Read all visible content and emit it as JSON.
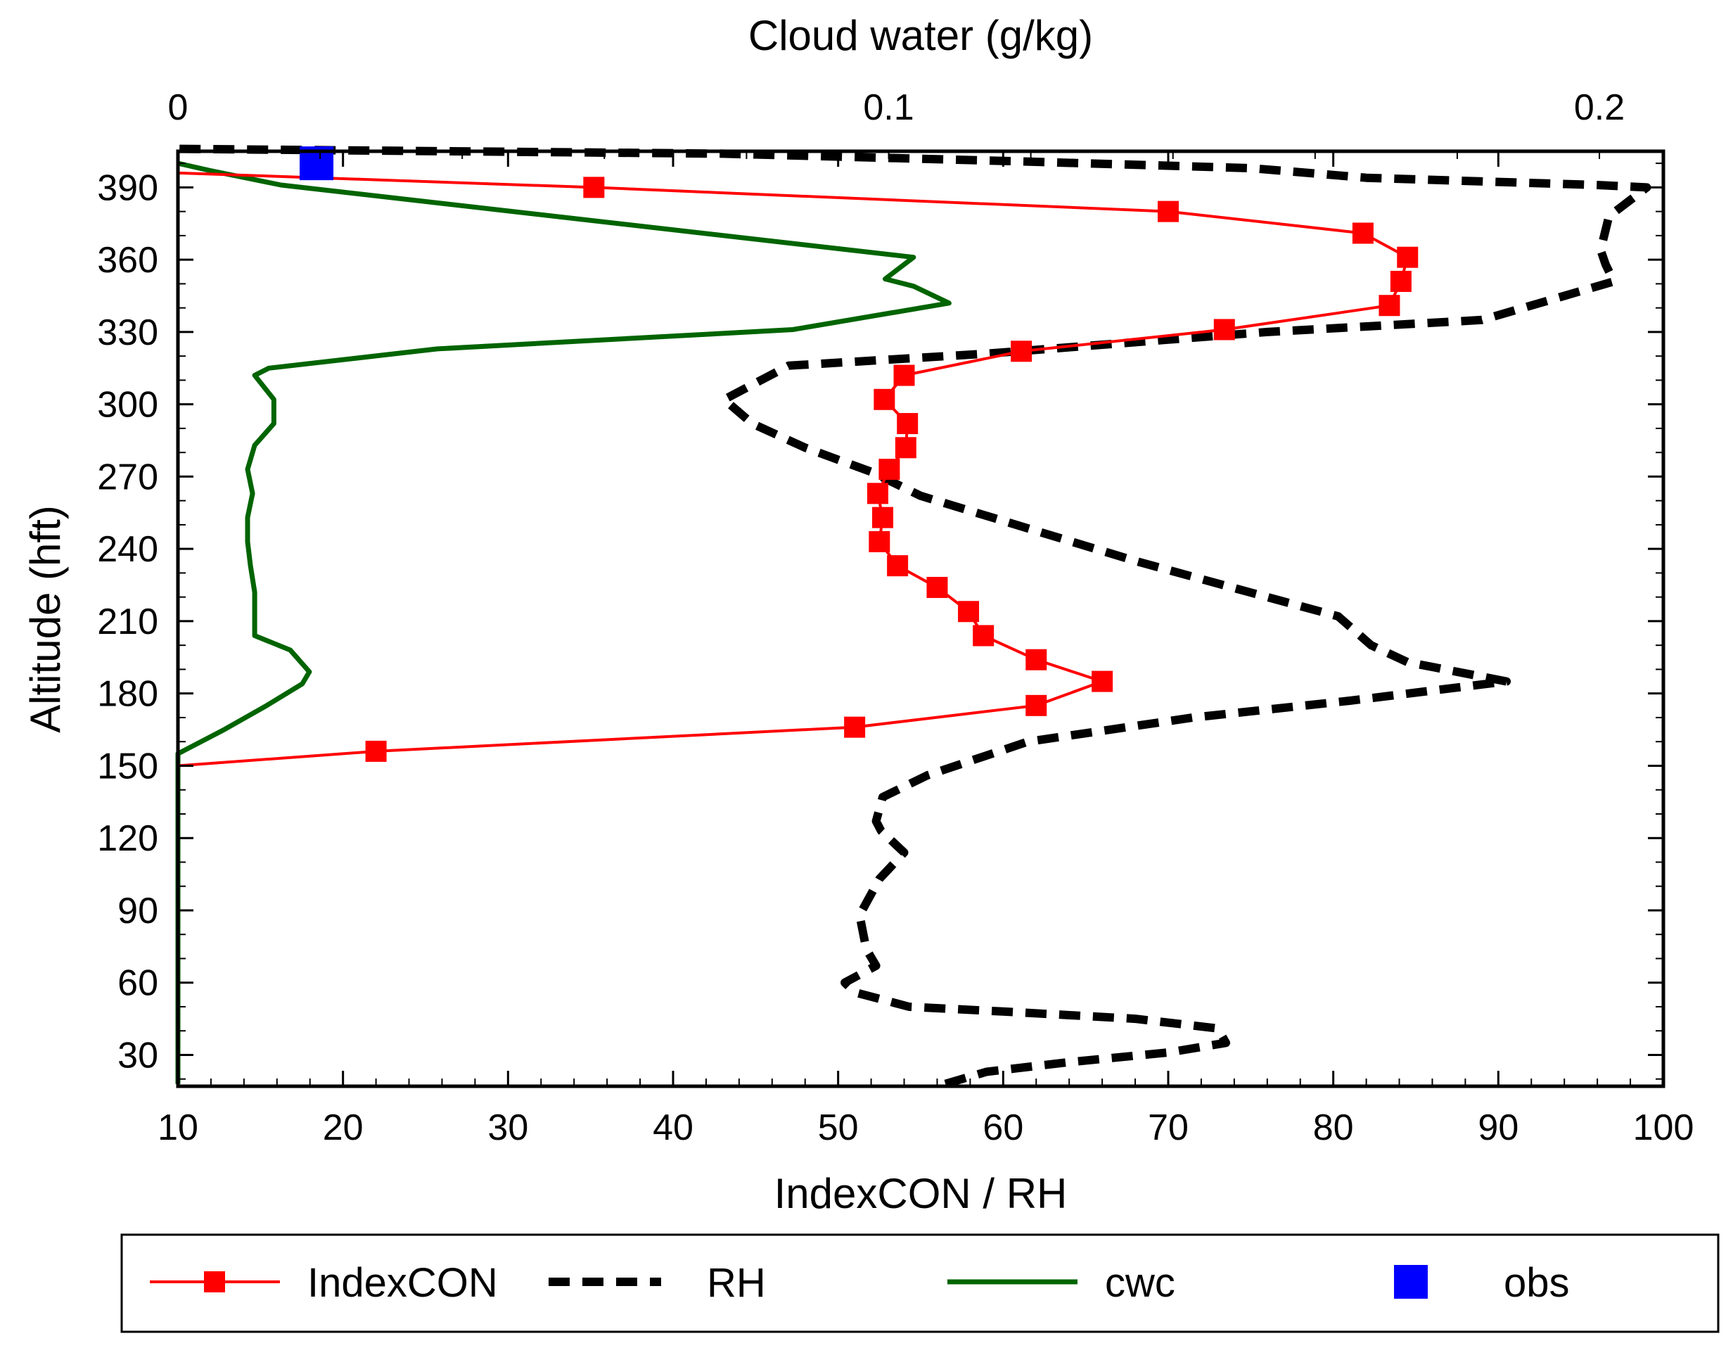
{
  "chart_data": {
    "type": "line",
    "title": "",
    "xlabel": "IndexCON / RH",
    "x2label": "Cloud water (g/kg)",
    "ylabel": "Altitude (hft)",
    "xlim": [
      10,
      100
    ],
    "x2lim": [
      0,
      0.209
    ],
    "ylim": [
      17,
      405
    ],
    "xticks": [
      "10",
      "20",
      "30",
      "40",
      "50",
      "60",
      "70",
      "80",
      "90",
      "100"
    ],
    "x2ticks": [
      "0",
      "0.1",
      "0.2"
    ],
    "yticks": [
      "30",
      "60",
      "90",
      "120",
      "150",
      "180",
      "210",
      "240",
      "270",
      "300",
      "330",
      "360",
      "390"
    ],
    "legend_position": "bottom",
    "series": [
      {
        "name": "IndexCON",
        "axis": "bottom",
        "style": "solid-markers",
        "color": "#ff0000",
        "x": [
          10,
          22,
          51,
          62,
          66,
          62,
          58.8,
          57.9,
          56,
          53.6,
          52.5,
          52.7,
          52.4,
          53.1,
          54.1,
          54.2,
          52.8,
          54.0,
          61.1,
          73.4,
          83.4,
          84.1,
          84.5,
          81.8,
          70.0,
          35.2,
          10
        ],
        "y": [
          150,
          156,
          166,
          175,
          185,
          194,
          204,
          214,
          224,
          233,
          243,
          253,
          263,
          273,
          282,
          292,
          302,
          312,
          322,
          331,
          341,
          351,
          361,
          371,
          380,
          390,
          396
        ],
        "markers": [
          false,
          true,
          true,
          true,
          true,
          true,
          true,
          true,
          true,
          true,
          true,
          true,
          true,
          true,
          true,
          true,
          true,
          true,
          true,
          true,
          true,
          true,
          true,
          true,
          true,
          true,
          false
        ]
      },
      {
        "name": "RH",
        "axis": "bottom",
        "style": "dashed",
        "color": "#000000",
        "x": [
          56.5,
          59,
          64,
          70,
          73.5,
          73,
          68,
          60,
          54.3,
          51,
          50.4,
          52.3,
          51.7,
          51.3,
          52.5,
          54,
          52.6,
          52.3,
          52.7,
          55.4,
          61.5,
          71.5,
          81,
          90.5,
          84.5,
          82.3,
          80.3,
          76,
          68,
          55,
          52,
          48,
          44.8,
          43.1,
          47,
          59,
          76,
          89,
          93,
          97,
          96.5,
          96.2,
          96.7,
          99,
          96,
          82,
          75,
          60,
          43,
          10
        ],
        "y": [
          18,
          23,
          27,
          31,
          35,
          41,
          45,
          48,
          50,
          56,
          60,
          67,
          74,
          88,
          103,
          114,
          123,
          127,
          137,
          146,
          160,
          170,
          177,
          185,
          193,
          200,
          212,
          220,
          235,
          262,
          272,
          282,
          292,
          302,
          316,
          321,
          330,
          335,
          343,
          351,
          358,
          364,
          378,
          390,
          391,
          394,
          398,
          401,
          404,
          406
        ]
      },
      {
        "name": "cwc",
        "axis": "top",
        "style": "solid",
        "color": "#006400",
        "x2": [
          0,
          0,
          0,
          0,
          0.0065,
          0.0125,
          0.0175,
          0.0185,
          0.0158,
          0.0108,
          0.0108,
          0.0102,
          0.0098,
          0.0098,
          0.0105,
          0.0098,
          0.0108,
          0.0135,
          0.0135,
          0.0108,
          0.0128,
          0.0365,
          0.0865,
          0.1085,
          0.1035,
          0.0995,
          0.1035,
          0.0145,
          0.0045,
          0
        ],
        "y": [
          18,
          60,
          120,
          155,
          165,
          175,
          184,
          189,
          198,
          204,
          222,
          233,
          243,
          253,
          263,
          273,
          283,
          292,
          302,
          312,
          315,
          323,
          331,
          342,
          349,
          352,
          361,
          391,
          397,
          400
        ]
      },
      {
        "name": "obs",
        "axis": "top",
        "style": "marker",
        "color": "#0000ff",
        "x2": [
          0.0195
        ],
        "y": [
          400
        ]
      }
    ]
  },
  "legend": {
    "items": [
      {
        "label": "IndexCON"
      },
      {
        "label": "RH"
      },
      {
        "label": "cwc"
      },
      {
        "label": "obs"
      }
    ]
  }
}
